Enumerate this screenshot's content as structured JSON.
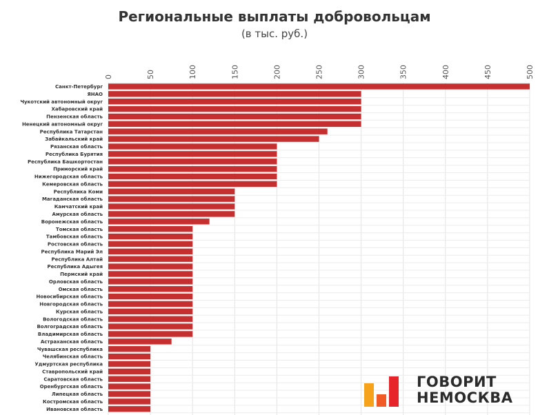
{
  "chart_data": {
    "type": "bar",
    "orientation": "horizontal",
    "title": "Региональные выплаты добровольцам",
    "subtitle": "(в тыс. руб.)",
    "xlim": [
      0,
      500
    ],
    "ticks": [
      0,
      50,
      100,
      150,
      200,
      250,
      300,
      350,
      400,
      450,
      500
    ],
    "grid": true,
    "bar_color": "#c62f30",
    "categories": [
      "Санкт-Петербург",
      "ЯНАО",
      "Чукотский автономный округ",
      "Хабаровский край",
      "Пензенская область",
      "Ненецкий автономный округ",
      "Республика Татарстан",
      "Забайкальский край",
      "Рязанская область",
      "Республика Бурятия",
      "Республика Башкортостан",
      "Приморский край",
      "Нижегородская область",
      "Кемеровская область",
      "Республика Коми",
      "Магаданская область",
      "Камчатский край",
      "Амурская область",
      "Воронежская область",
      "Томская область",
      "Тамбовская область",
      "Ростовская область",
      "Республика Марий Эл",
      "Республика Алтай",
      "Республика Адыгея",
      "Пермский край",
      "Орловская область",
      "Омская область",
      "Новосибирская область",
      "Новгородская область",
      "Курская область",
      "Вологодская область",
      "Волгоградская область",
      "Владимирская область",
      "Астраханская область",
      "Чувашская республика",
      "Челябинская область",
      "Удмуртская республика",
      "Ставропольский край",
      "Саратовская область",
      "Оренбургская область",
      "Липецкая область",
      "Костромская область",
      "Ивановская область"
    ],
    "values": [
      500,
      300,
      300,
      300,
      300,
      300,
      260,
      250,
      200,
      200,
      200,
      200,
      200,
      200,
      150,
      150,
      150,
      150,
      120,
      100,
      100,
      100,
      100,
      100,
      100,
      100,
      100,
      100,
      100,
      100,
      100,
      100,
      100,
      100,
      75,
      50,
      50,
      50,
      50,
      50,
      50,
      50,
      50,
      50
    ]
  },
  "logo": {
    "line1": "ГОВОРИТ",
    "line2": "НЕМОСКВА",
    "colors": [
      "#f7a21b",
      "#f15a24",
      "#e8242b",
      "#f7a21b"
    ]
  }
}
